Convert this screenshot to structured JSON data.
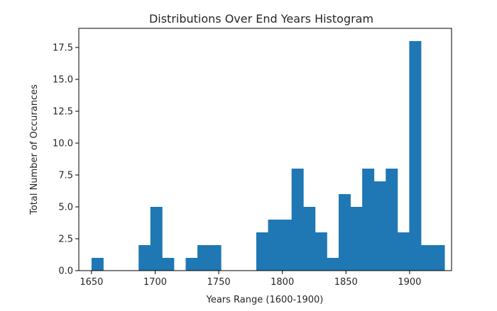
{
  "chart_data": {
    "type": "histogram",
    "title": "Distributions Over End Years Histogram",
    "xlabel": "Years Range (1600-1900)",
    "ylabel": "Total Number of Occurances",
    "xlim": [
      1640,
      1933
    ],
    "ylim": [
      0,
      19
    ],
    "x_ticks": [
      1650,
      1700,
      1750,
      1800,
      1850,
      1900
    ],
    "x_tick_labels": [
      "1650",
      "1700",
      "1750",
      "1800",
      "1850",
      "1900"
    ],
    "y_ticks": [
      0,
      2.5,
      5,
      7.5,
      10,
      12.5,
      15,
      17.5
    ],
    "y_tick_labels": [
      "0.0",
      "2.5",
      "5.0",
      "7.5",
      "10.0",
      "12.5",
      "15.0",
      "17.5"
    ],
    "grid": false,
    "legend": "none",
    "bar_color": "#1f77b4",
    "bin_start": 1650,
    "bin_width": 9.25,
    "counts": [
      1,
      0,
      0,
      0,
      2,
      5,
      1,
      0,
      1,
      2,
      2,
      0,
      0,
      0,
      3,
      4,
      4,
      8,
      5,
      3,
      1,
      6,
      5,
      8,
      7,
      8,
      3,
      18,
      2,
      2
    ]
  }
}
